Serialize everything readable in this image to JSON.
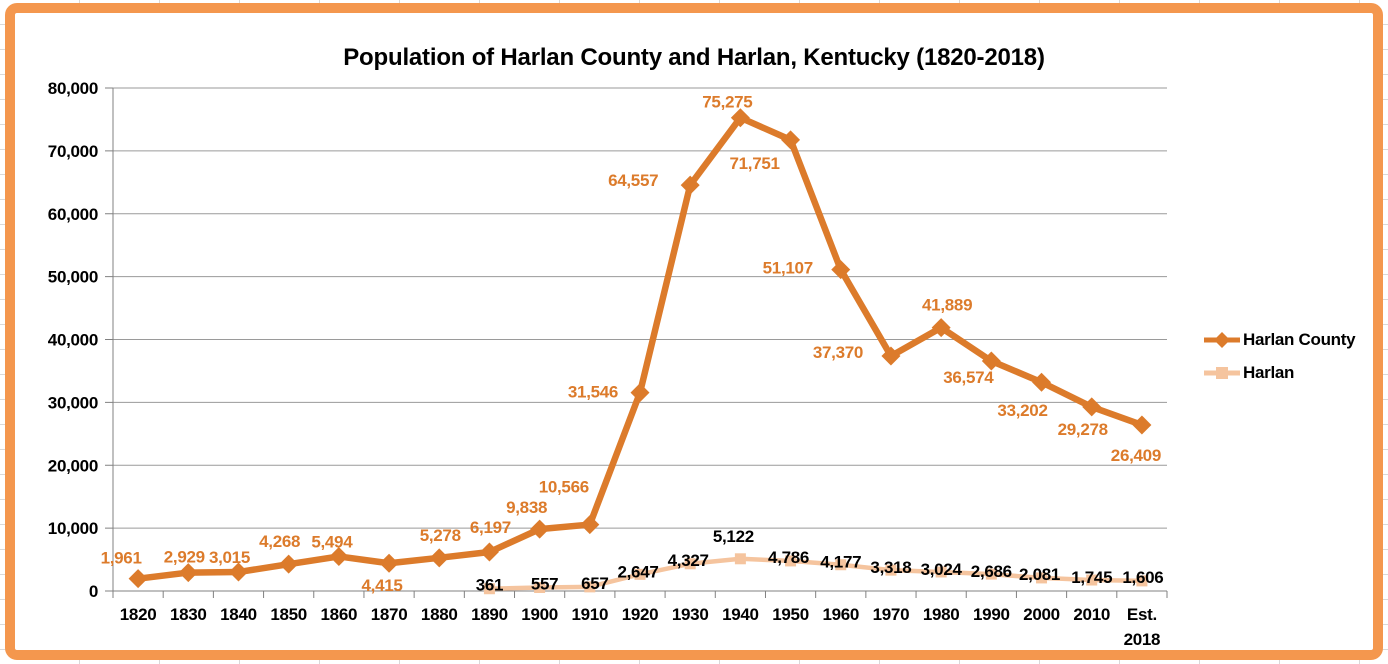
{
  "colors": {
    "frame_border": "#F4974E",
    "harlan_county": "#DC7B2B",
    "harlan": "#F5C49E",
    "gridline": "#9A9A9A",
    "axis": "#808080",
    "black": "#000000"
  },
  "chart_data": {
    "type": "line",
    "title": "Population of Harlan County and Harlan, Kentucky (1820-2018)",
    "xlabel": "",
    "ylabel": "",
    "ylim": [
      0,
      80000
    ],
    "grid": "horizontal",
    "legend_position": "right",
    "categories": [
      "1820",
      "1830",
      "1840",
      "1850",
      "1860",
      "1870",
      "1880",
      "1890",
      "1900",
      "1910",
      "1920",
      "1930",
      "1940",
      "1950",
      "1960",
      "1970",
      "1980",
      "1990",
      "2000",
      "2010",
      "Est. 2018"
    ],
    "y_tick_values": [
      0,
      10000,
      20000,
      30000,
      40000,
      50000,
      60000,
      70000,
      80000
    ],
    "y_tick_labels": [
      "0",
      "10,000",
      "20,000",
      "30,000",
      "40,000",
      "50,000",
      "60,000",
      "70,000",
      "80,000"
    ],
    "series": [
      {
        "name": "Harlan County",
        "marker": "diamond",
        "color": "#DC7B2B",
        "label_color": "#DC7B2B",
        "values": [
          1961,
          2929,
          3015,
          4268,
          5494,
          4415,
          5278,
          6197,
          9838,
          10566,
          31546,
          64557,
          75275,
          71751,
          51107,
          37370,
          41889,
          36574,
          33202,
          29278,
          26409
        ],
        "labels": [
          "1,961",
          "2,929",
          "3,015",
          "4,268",
          "5,494",
          "4,415",
          "5,278",
          "6,197",
          "9,838",
          "10,566",
          "31,546",
          "64,557",
          "75,275",
          "71,751",
          "51,107",
          "37,370",
          "41,889",
          "36,574",
          "33,202",
          "29,278",
          "26,409"
        ],
        "label_offsets": [
          [
            -17,
            -21
          ],
          [
            -4,
            -16
          ],
          [
            -9,
            -15
          ],
          [
            -9,
            -23
          ],
          [
            -7,
            -15
          ],
          [
            -7,
            22
          ],
          [
            1,
            -23
          ],
          [
            1,
            -25
          ],
          [
            -13,
            -22
          ],
          [
            -26,
            -38
          ],
          [
            -47,
            -1
          ],
          [
            -57,
            -5
          ],
          [
            -13,
            -16
          ],
          [
            -36,
            23
          ],
          [
            -53,
            -2
          ],
          [
            -53,
            -4
          ],
          [
            6,
            -23
          ],
          [
            -23,
            16
          ],
          [
            -19,
            28
          ],
          [
            -9,
            22
          ],
          [
            -6,
            30
          ]
        ]
      },
      {
        "name": "Harlan",
        "marker": "square",
        "color": "#F5C49E",
        "label_color": "#000000",
        "values": [
          null,
          null,
          null,
          null,
          null,
          null,
          null,
          361,
          557,
          657,
          2647,
          4327,
          5122,
          4786,
          4177,
          3318,
          3024,
          2686,
          2081,
          1745,
          1606
        ],
        "labels": [
          "",
          "",
          "",
          "",
          "",
          "",
          "",
          "361",
          "557",
          "657",
          "2,647",
          "4,327",
          "5,122",
          "4,786",
          "4,177",
          "3,318",
          "3,024",
          "2,686",
          "2,081",
          "1,745",
          "1,606"
        ],
        "label_offsets": [
          null,
          null,
          null,
          null,
          null,
          null,
          null,
          [
            0,
            -4
          ],
          [
            5,
            -4
          ],
          [
            5,
            -4
          ],
          [
            -2,
            -3
          ],
          [
            -2,
            -4
          ],
          [
            -7,
            -23
          ],
          [
            -2,
            -4
          ],
          [
            0,
            -3
          ],
          [
            0,
            -3
          ],
          [
            0,
            -3
          ],
          [
            0,
            -3
          ],
          [
            -2,
            -4
          ],
          [
            0,
            -3
          ],
          [
            1,
            -4
          ]
        ]
      }
    ]
  }
}
